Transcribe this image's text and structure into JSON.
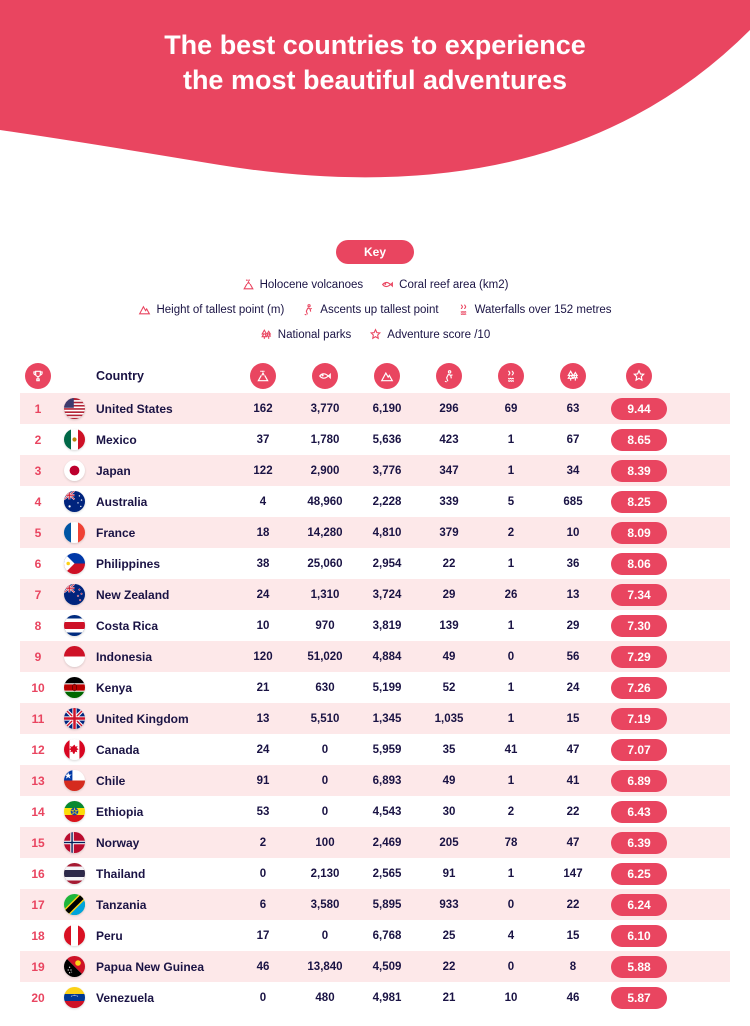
{
  "colors": {
    "accent": "#e94560",
    "rowAlt": "#fde8e9",
    "text": "#1a1344",
    "white": "#ffffff"
  },
  "hero": {
    "title_line1": "The best countries to experience",
    "title_line2": "the most beautiful adventures"
  },
  "key": {
    "badge": "Key",
    "items": [
      {
        "icon": "volcano-icon",
        "label": "Holocene volcanoes"
      },
      {
        "icon": "fish-icon",
        "label": "Coral reef area (km2)"
      },
      {
        "icon": "mountain-icon",
        "label": "Height of tallest point (m)"
      },
      {
        "icon": "hiker-icon",
        "label": "Ascents up tallest point"
      },
      {
        "icon": "waterfall-icon",
        "label": "Waterfalls over 152 metres"
      },
      {
        "icon": "trees-icon",
        "label": "National parks"
      },
      {
        "icon": "star-icon",
        "label": "Adventure score /10"
      }
    ]
  },
  "table": {
    "country_header": "Country",
    "header_icons": [
      "trophy-icon",
      "volcano-icon",
      "fish-icon",
      "mountain-icon",
      "hiker-icon",
      "waterfall-icon",
      "trees-icon",
      "star-icon"
    ],
    "rows": [
      {
        "rank": "1",
        "country": "United States",
        "flag": "us",
        "v": [
          "162",
          "3,770",
          "6,190",
          "296",
          "69",
          "63"
        ],
        "score": "9.44"
      },
      {
        "rank": "2",
        "country": "Mexico",
        "flag": "mx",
        "v": [
          "37",
          "1,780",
          "5,636",
          "423",
          "1",
          "67"
        ],
        "score": "8.65"
      },
      {
        "rank": "3",
        "country": "Japan",
        "flag": "jp",
        "v": [
          "122",
          "2,900",
          "3,776",
          "347",
          "1",
          "34"
        ],
        "score": "8.39"
      },
      {
        "rank": "4",
        "country": "Australia",
        "flag": "au",
        "v": [
          "4",
          "48,960",
          "2,228",
          "339",
          "5",
          "685"
        ],
        "score": "8.25"
      },
      {
        "rank": "5",
        "country": "France",
        "flag": "fr",
        "v": [
          "18",
          "14,280",
          "4,810",
          "379",
          "2",
          "10"
        ],
        "score": "8.09"
      },
      {
        "rank": "6",
        "country": "Philippines",
        "flag": "ph",
        "v": [
          "38",
          "25,060",
          "2,954",
          "22",
          "1",
          "36"
        ],
        "score": "8.06"
      },
      {
        "rank": "7",
        "country": "New Zealand",
        "flag": "nz",
        "v": [
          "24",
          "1,310",
          "3,724",
          "29",
          "26",
          "13"
        ],
        "score": "7.34"
      },
      {
        "rank": "8",
        "country": "Costa Rica",
        "flag": "cr",
        "v": [
          "10",
          "970",
          "3,819",
          "139",
          "1",
          "29"
        ],
        "score": "7.30"
      },
      {
        "rank": "9",
        "country": "Indonesia",
        "flag": "id",
        "v": [
          "120",
          "51,020",
          "4,884",
          "49",
          "0",
          "56"
        ],
        "score": "7.29"
      },
      {
        "rank": "10",
        "country": "Kenya",
        "flag": "ke",
        "v": [
          "21",
          "630",
          "5,199",
          "52",
          "1",
          "24"
        ],
        "score": "7.26"
      },
      {
        "rank": "11",
        "country": "United Kingdom",
        "flag": "gb",
        "v": [
          "13",
          "5,510",
          "1,345",
          "1,035",
          "1",
          "15"
        ],
        "score": "7.19"
      },
      {
        "rank": "12",
        "country": "Canada",
        "flag": "ca",
        "v": [
          "24",
          "0",
          "5,959",
          "35",
          "41",
          "47"
        ],
        "score": "7.07"
      },
      {
        "rank": "13",
        "country": "Chile",
        "flag": "cl",
        "v": [
          "91",
          "0",
          "6,893",
          "49",
          "1",
          "41"
        ],
        "score": "6.89"
      },
      {
        "rank": "14",
        "country": "Ethiopia",
        "flag": "et",
        "v": [
          "53",
          "0",
          "4,543",
          "30",
          "2",
          "22"
        ],
        "score": "6.43"
      },
      {
        "rank": "15",
        "country": "Norway",
        "flag": "no",
        "v": [
          "2",
          "100",
          "2,469",
          "205",
          "78",
          "47"
        ],
        "score": "6.39"
      },
      {
        "rank": "16",
        "country": "Thailand",
        "flag": "th",
        "v": [
          "0",
          "2,130",
          "2,565",
          "91",
          "1",
          "147"
        ],
        "score": "6.25"
      },
      {
        "rank": "17",
        "country": "Tanzania",
        "flag": "tz",
        "v": [
          "6",
          "3,580",
          "5,895",
          "933",
          "0",
          "22"
        ],
        "score": "6.24"
      },
      {
        "rank": "18",
        "country": "Peru",
        "flag": "pe",
        "v": [
          "17",
          "0",
          "6,768",
          "25",
          "4",
          "15"
        ],
        "score": "6.10"
      },
      {
        "rank": "19",
        "country": "Papua New Guinea",
        "flag": "pg",
        "v": [
          "46",
          "13,840",
          "4,509",
          "22",
          "0",
          "8"
        ],
        "score": "5.88"
      },
      {
        "rank": "20",
        "country": "Venezuela",
        "flag": "ve",
        "v": [
          "0",
          "480",
          "4,981",
          "21",
          "10",
          "46"
        ],
        "score": "5.87"
      }
    ]
  }
}
